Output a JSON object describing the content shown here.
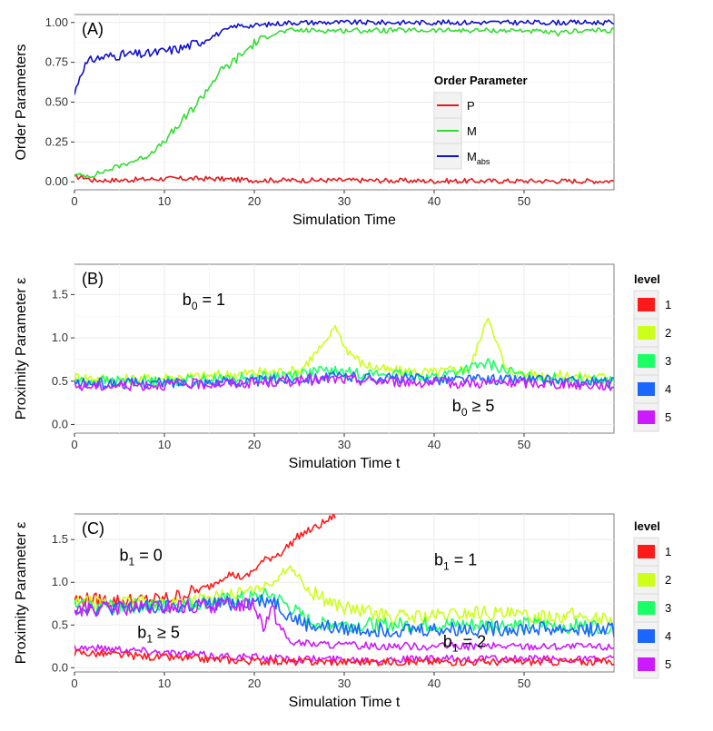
{
  "chart_data": [
    {
      "type": "line",
      "tag": "(A)",
      "xlabel": "Simulation Time",
      "ylabel": "Order Parameters",
      "xlim": [
        0,
        60
      ],
      "ylim": [
        -0.05,
        1.05
      ],
      "xticks": [
        0,
        10,
        20,
        30,
        40,
        50
      ],
      "yticks": [
        0.0,
        0.25,
        0.5,
        0.75,
        1.0
      ],
      "ytick_labels": [
        "0.00",
        "0.25",
        "0.50",
        "0.75",
        "1.00"
      ],
      "legend": {
        "title": "Order Parameter",
        "placement": "center-right, inside",
        "entries": [
          {
            "label": "P",
            "color": "#e41a1c"
          },
          {
            "label": "M",
            "color": "#33dd33"
          },
          {
            "label": "M",
            "sub": "abs",
            "color": "#1111cc"
          }
        ]
      },
      "series": [
        {
          "name": "P",
          "color": "#e41a1c",
          "x": [
            0,
            1,
            2,
            3,
            5,
            10,
            15,
            20,
            30,
            40,
            50,
            60
          ],
          "y": [
            0.03,
            0.03,
            0.01,
            0.01,
            0.01,
            0.02,
            0.02,
            0.01,
            0.01,
            0.005,
            0.005,
            0.005
          ]
        },
        {
          "name": "M",
          "color": "#33dd33",
          "x": [
            0,
            2,
            4,
            6,
            8,
            10,
            12,
            14,
            16,
            18,
            20,
            22,
            24,
            30,
            40,
            50,
            52,
            54,
            56,
            60
          ],
          "y": [
            0.04,
            0.04,
            0.08,
            0.12,
            0.16,
            0.25,
            0.38,
            0.52,
            0.68,
            0.77,
            0.87,
            0.93,
            0.95,
            0.95,
            0.95,
            0.95,
            0.94,
            0.93,
            0.95,
            0.95
          ]
        },
        {
          "name": "Mabs",
          "color": "#1111cc",
          "x": [
            0,
            0.5,
            1,
            2,
            4,
            6,
            8,
            10,
            12,
            14,
            16,
            18,
            20,
            22,
            24,
            30,
            40,
            50,
            60
          ],
          "y": [
            0.55,
            0.65,
            0.72,
            0.77,
            0.79,
            0.8,
            0.8,
            0.82,
            0.84,
            0.88,
            0.93,
            0.98,
            0.98,
            0.99,
            1.0,
            1.0,
            1.0,
            1.0,
            1.0
          ]
        }
      ]
    },
    {
      "type": "line",
      "tag": "(B)",
      "xlabel": "Simulation Time t",
      "ylabel": "Proximity Parameter ε",
      "xlim": [
        0,
        60
      ],
      "ylim": [
        -0.1,
        1.85
      ],
      "xticks": [
        0,
        10,
        20,
        30,
        40,
        50
      ],
      "yticks": [
        0.0,
        0.5,
        1.0,
        1.5
      ],
      "ytick_labels": [
        "0.0",
        "0.5",
        "1.0",
        "1.5"
      ],
      "annotations": [
        {
          "base": "b",
          "sub": "0",
          "rest": " = 1",
          "x": 12,
          "y": 1.38
        },
        {
          "base": "b",
          "sub": "0",
          "rest": " ≥ 5",
          "x": 42,
          "y": 0.15
        }
      ],
      "legend": {
        "title": "level",
        "placement": "right, outside",
        "entries": [
          {
            "label": "1",
            "color": "#ff1a1a"
          },
          {
            "label": "2",
            "color": "#ccff1a"
          },
          {
            "label": "3",
            "color": "#1aff66"
          },
          {
            "label": "4",
            "color": "#1a66ff"
          },
          {
            "label": "5",
            "color": "#cc1aff"
          }
        ]
      },
      "series": [
        {
          "name": "2",
          "color": "#ccff1a",
          "x": [
            0,
            5,
            10,
            15,
            20,
            25,
            28,
            29,
            30,
            32,
            35,
            40,
            44,
            46,
            48,
            50,
            55,
            60
          ],
          "y": [
            0.55,
            0.52,
            0.54,
            0.56,
            0.6,
            0.62,
            0.95,
            1.15,
            0.9,
            0.7,
            0.62,
            0.6,
            0.65,
            1.25,
            0.62,
            0.58,
            0.56,
            0.54
          ]
        },
        {
          "name": "3",
          "color": "#1aff66",
          "x": [
            0,
            10,
            20,
            28,
            30,
            40,
            46,
            50,
            60
          ],
          "y": [
            0.5,
            0.5,
            0.54,
            0.62,
            0.6,
            0.55,
            0.7,
            0.55,
            0.5
          ]
        },
        {
          "name": "4",
          "color": "#1a66ff",
          "x": [
            0,
            10,
            20,
            28,
            30,
            40,
            50,
            60
          ],
          "y": [
            0.47,
            0.48,
            0.5,
            0.55,
            0.55,
            0.52,
            0.52,
            0.48
          ]
        },
        {
          "name": "5",
          "color": "#cc1aff",
          "x": [
            0,
            10,
            20,
            28,
            30,
            40,
            50,
            60
          ],
          "y": [
            0.44,
            0.46,
            0.48,
            0.52,
            0.52,
            0.48,
            0.48,
            0.45
          ]
        }
      ]
    },
    {
      "type": "line",
      "tag": "(C)",
      "xlabel": "Simulation Time t",
      "ylabel": "Proximity Parameter ε",
      "xlim": [
        0,
        60
      ],
      "ylim": [
        -0.05,
        1.8
      ],
      "xticks": [
        0,
        10,
        20,
        30,
        40,
        50
      ],
      "yticks": [
        0.0,
        0.5,
        1.0,
        1.5
      ],
      "ytick_labels": [
        "0.0",
        "0.5",
        "1.0",
        "1.5"
      ],
      "annotations": [
        {
          "base": "b",
          "sub": "1",
          "rest": " = 0",
          "x": 5,
          "y": 1.25
        },
        {
          "base": "b",
          "sub": "1",
          "rest": " = 1",
          "x": 40,
          "y": 1.2
        },
        {
          "base": "b",
          "sub": "1",
          "rest": " ≥ 5",
          "x": 7,
          "y": 0.35
        },
        {
          "base": "b",
          "sub": "1",
          "rest": " = 2",
          "x": 41,
          "y": 0.24
        }
      ],
      "legend": {
        "title": "level",
        "placement": "right, outside",
        "entries": [
          {
            "label": "1",
            "color": "#ff1a1a"
          },
          {
            "label": "2",
            "color": "#ccff1a"
          },
          {
            "label": "3",
            "color": "#1aff66"
          },
          {
            "label": "4",
            "color": "#1a66ff"
          },
          {
            "label": "5",
            "color": "#cc1aff"
          }
        ]
      },
      "series": [
        {
          "name": "1 (upper)",
          "color": "#ff1a1a",
          "x": [
            0,
            5,
            10,
            12,
            15,
            17,
            19,
            21,
            23,
            25,
            27,
            29
          ],
          "y": [
            0.8,
            0.78,
            0.8,
            0.85,
            0.95,
            1.1,
            1.05,
            1.25,
            1.35,
            1.55,
            1.65,
            1.78
          ]
        },
        {
          "name": "2 (upper)",
          "color": "#ccff1a",
          "x": [
            0,
            10,
            15,
            20,
            22,
            24,
            26,
            30,
            35,
            40,
            45,
            50,
            55,
            60
          ],
          "y": [
            0.75,
            0.76,
            0.8,
            0.9,
            1.0,
            1.2,
            0.9,
            0.7,
            0.6,
            0.6,
            0.65,
            0.6,
            0.62,
            0.55
          ]
        },
        {
          "name": "3 (upper)",
          "color": "#1aff66",
          "x": [
            0,
            10,
            20,
            22,
            24,
            26,
            30,
            40,
            50,
            60
          ],
          "y": [
            0.72,
            0.72,
            0.82,
            0.85,
            0.7,
            0.55,
            0.5,
            0.5,
            0.5,
            0.48
          ]
        },
        {
          "name": "4 (upper)",
          "color": "#1a66ff",
          "x": [
            0,
            10,
            20,
            22,
            24,
            26,
            30,
            40,
            50,
            60
          ],
          "y": [
            0.7,
            0.7,
            0.78,
            0.8,
            0.6,
            0.5,
            0.45,
            0.45,
            0.46,
            0.44
          ]
        },
        {
          "name": "5 (upper)",
          "color": "#cc1aff",
          "x": [
            0,
            10,
            20,
            21,
            22,
            23,
            24,
            26,
            30,
            40,
            50,
            60
          ],
          "y": [
            0.68,
            0.7,
            0.75,
            0.5,
            0.7,
            0.45,
            0.3,
            0.28,
            0.26,
            0.25,
            0.25,
            0.24
          ]
        },
        {
          "name": "5 (lower)",
          "color": "#cc1aff",
          "x": [
            0,
            5,
            10,
            15,
            20,
            25,
            30,
            40,
            50,
            60
          ],
          "y": [
            0.24,
            0.22,
            0.18,
            0.14,
            0.12,
            0.1,
            0.1,
            0.1,
            0.1,
            0.1
          ]
        },
        {
          "name": "1 (lower)",
          "color": "#ff1a1a",
          "x": [
            0,
            5,
            10,
            15,
            20,
            25,
            30,
            40,
            50,
            60
          ],
          "y": [
            0.18,
            0.15,
            0.12,
            0.1,
            0.08,
            0.07,
            0.07,
            0.07,
            0.07,
            0.07
          ]
        }
      ]
    }
  ]
}
